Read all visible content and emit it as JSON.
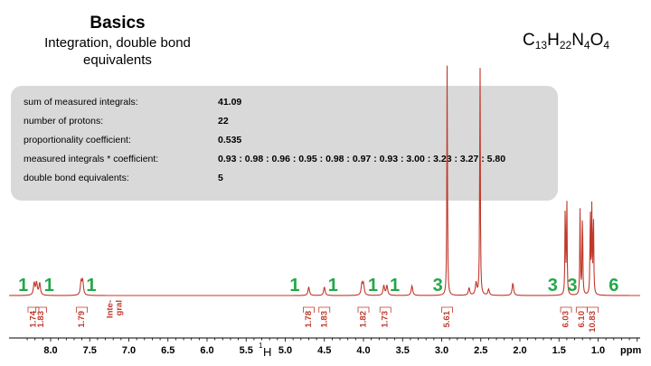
{
  "title": "Basics",
  "subtitle": "Integration, double bond equivalents",
  "formula": {
    "c": "13",
    "h": "22",
    "n": "4",
    "o": "4"
  },
  "info": {
    "rows": [
      {
        "label": "sum of measured integrals:",
        "value": "41.09"
      },
      {
        "label": "number of protons:",
        "value": "22"
      },
      {
        "label": "proportionality coefficient:",
        "value": "0.535"
      },
      {
        "label": "measured integrals * coefficient:",
        "value": "0.93 : 0.98 : 0.96 : 0.95 : 0.98 : 0.97 : 0.93 : 3.00 : 3.23 : 3.27 : 5.80"
      },
      {
        "label": "double bond equivalents:",
        "value": "5"
      }
    ]
  },
  "colors": {
    "spectrum": "#c0392b",
    "proton_count": "#22a84a",
    "integral": "#c0392b",
    "box": "#d9d9d9"
  },
  "chart_data": {
    "type": "line",
    "xlabel_prefix": "1",
    "xlabel_main": "H",
    "xunit": "ppm",
    "xlim": [
      8.4,
      0.4
    ],
    "xticks": [
      "8.0",
      "7.5",
      "7.0",
      "6.5",
      "6.0",
      "5.5",
      "5.0",
      "4.5",
      "4.0",
      "3.5",
      "3.0",
      "2.5",
      "2.0",
      "1.5",
      "1.0"
    ],
    "integral_header": "Inte-gral",
    "peaks": [
      {
        "ppm": 8.21,
        "height": 0.05
      },
      {
        "ppm": 8.18,
        "height": 0.05
      },
      {
        "ppm": 8.14,
        "height": 0.05
      },
      {
        "ppm": 7.61,
        "height": 0.055
      },
      {
        "ppm": 7.59,
        "height": 0.055
      },
      {
        "ppm": 4.7,
        "height": 0.035
      },
      {
        "ppm": 4.5,
        "height": 0.035
      },
      {
        "ppm": 4.02,
        "height": 0.045
      },
      {
        "ppm": 4.0,
        "height": 0.045
      },
      {
        "ppm": 3.74,
        "height": 0.04
      },
      {
        "ppm": 3.7,
        "height": 0.04
      },
      {
        "ppm": 3.38,
        "height": 0.04
      },
      {
        "ppm": 2.93,
        "height": 0.95
      },
      {
        "ppm": 2.65,
        "height": 0.03
      },
      {
        "ppm": 2.56,
        "height": 0.05
      },
      {
        "ppm": 2.51,
        "height": 1.0
      },
      {
        "ppm": 2.4,
        "height": 0.025
      },
      {
        "ppm": 2.09,
        "height": 0.05
      },
      {
        "ppm": 1.42,
        "height": 0.39
      },
      {
        "ppm": 1.4,
        "height": 0.39
      },
      {
        "ppm": 1.23,
        "height": 0.37
      },
      {
        "ppm": 1.2,
        "height": 0.37
      },
      {
        "ppm": 1.1,
        "height": 0.36
      },
      {
        "ppm": 1.08,
        "height": 0.36
      },
      {
        "ppm": 1.06,
        "height": 0.36
      }
    ],
    "integrals": [
      {
        "ppm": 8.22,
        "value": "1.74"
      },
      {
        "ppm": 8.12,
        "value": "1.83"
      },
      {
        "ppm": 7.6,
        "value": "1.79"
      },
      {
        "ppm": 4.7,
        "value": "1.78"
      },
      {
        "ppm": 4.5,
        "value": "1.83"
      },
      {
        "ppm": 4.0,
        "value": "1.82"
      },
      {
        "ppm": 3.72,
        "value": "1.73"
      },
      {
        "ppm": 2.93,
        "value": "5.61"
      },
      {
        "ppm": 1.41,
        "value": "6.03"
      },
      {
        "ppm": 1.21,
        "value": "6.10"
      },
      {
        "ppm": 1.07,
        "value": "10.83"
      }
    ],
    "proton_counts": [
      {
        "ppm": 8.35,
        "value": "1"
      },
      {
        "ppm": 8.02,
        "value": "1"
      },
      {
        "ppm": 7.48,
        "value": "1"
      },
      {
        "ppm": 4.88,
        "value": "1"
      },
      {
        "ppm": 4.39,
        "value": "1"
      },
      {
        "ppm": 3.88,
        "value": "1"
      },
      {
        "ppm": 3.6,
        "value": "1"
      },
      {
        "ppm": 3.05,
        "value": "3"
      },
      {
        "ppm": 1.58,
        "value": "3"
      },
      {
        "ppm": 1.33,
        "value": "3"
      },
      {
        "ppm": 0.8,
        "value": "6"
      }
    ]
  }
}
